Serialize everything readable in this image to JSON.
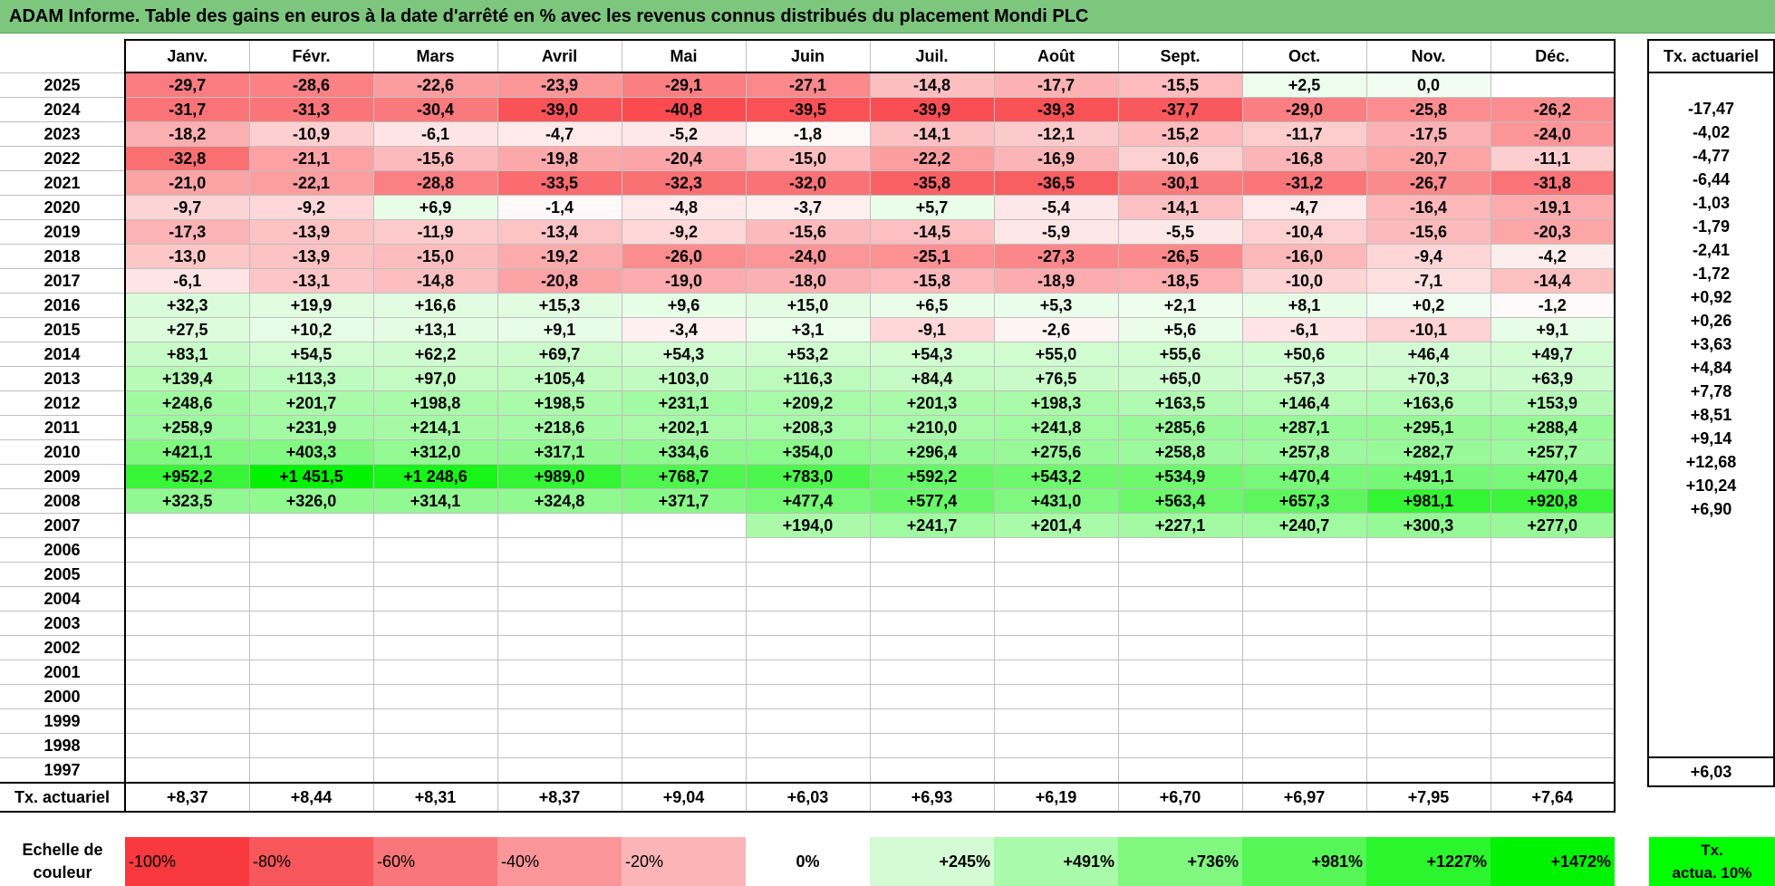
{
  "title": "ADAM Informe. Table des gains en euros à la date d'arrêté en % avec les revenus connus distribués du placement Mondi PLC",
  "months": [
    "Janv.",
    "Févr.",
    "Mars",
    "Avril",
    "Mai",
    "Juin",
    "Juil.",
    "Août",
    "Sept.",
    "Oct.",
    "Nov.",
    "Déc."
  ],
  "side_header": "Tx. actuariel",
  "rows": [
    {
      "year": "2025",
      "cells": [
        "-29,7",
        "-28,6",
        "-22,6",
        "-23,9",
        "-29,1",
        "-27,1",
        "-14,8",
        "-17,7",
        "-15,5",
        "+2,5",
        "0,0",
        ""
      ],
      "rate": ""
    },
    {
      "year": "2024",
      "cells": [
        "-31,7",
        "-31,3",
        "-30,4",
        "-39,0",
        "-40,8",
        "-39,5",
        "-39,9",
        "-39,3",
        "-37,7",
        "-29,0",
        "-25,8",
        "-26,2"
      ],
      "rate": "-17,47"
    },
    {
      "year": "2023",
      "cells": [
        "-18,2",
        "-10,9",
        "-6,1",
        "-4,7",
        "-5,2",
        "-1,8",
        "-14,1",
        "-12,1",
        "-15,2",
        "-11,7",
        "-17,5",
        "-24,0"
      ],
      "rate": "-4,02"
    },
    {
      "year": "2022",
      "cells": [
        "-32,8",
        "-21,1",
        "-15,6",
        "-19,8",
        "-20,4",
        "-15,0",
        "-22,2",
        "-16,9",
        "-10,6",
        "-16,8",
        "-20,7",
        "-11,1"
      ],
      "rate": "-4,77"
    },
    {
      "year": "2021",
      "cells": [
        "-21,0",
        "-22,1",
        "-28,8",
        "-33,5",
        "-32,3",
        "-32,0",
        "-35,8",
        "-36,5",
        "-30,1",
        "-31,2",
        "-26,7",
        "-31,8"
      ],
      "rate": "-6,44"
    },
    {
      "year": "2020",
      "cells": [
        "-9,7",
        "-9,2",
        "+6,9",
        "-1,4",
        "-4,8",
        "-3,7",
        "+5,7",
        "-5,4",
        "-14,1",
        "-4,7",
        "-16,4",
        "-19,1"
      ],
      "rate": "-1,03"
    },
    {
      "year": "2019",
      "cells": [
        "-17,3",
        "-13,9",
        "-11,9",
        "-13,4",
        "-9,2",
        "-15,6",
        "-14,5",
        "-5,9",
        "-5,5",
        "-10,4",
        "-15,6",
        "-20,3"
      ],
      "rate": "-1,79"
    },
    {
      "year": "2018",
      "cells": [
        "-13,0",
        "-13,9",
        "-15,0",
        "-19,2",
        "-26,0",
        "-24,0",
        "-25,1",
        "-27,3",
        "-26,5",
        "-16,0",
        "-9,4",
        "-4,2"
      ],
      "rate": "-2,41"
    },
    {
      "year": "2017",
      "cells": [
        "-6,1",
        "-13,1",
        "-14,8",
        "-20,8",
        "-19,0",
        "-18,0",
        "-15,8",
        "-18,9",
        "-18,5",
        "-10,0",
        "-7,1",
        "-14,4"
      ],
      "rate": "-1,72"
    },
    {
      "year": "2016",
      "cells": [
        "+32,3",
        "+19,9",
        "+16,6",
        "+15,3",
        "+9,6",
        "+15,0",
        "+6,5",
        "+5,3",
        "+2,1",
        "+8,1",
        "+0,2",
        "-1,2"
      ],
      "rate": "+0,92"
    },
    {
      "year": "2015",
      "cells": [
        "+27,5",
        "+10,2",
        "+13,1",
        "+9,1",
        "-3,4",
        "+3,1",
        "-9,1",
        "-2,6",
        "+5,6",
        "-6,1",
        "-10,1",
        "+9,1"
      ],
      "rate": "+0,26"
    },
    {
      "year": "2014",
      "cells": [
        "+83,1",
        "+54,5",
        "+62,2",
        "+69,7",
        "+54,3",
        "+53,2",
        "+54,3",
        "+55,0",
        "+55,6",
        "+50,6",
        "+46,4",
        "+49,7"
      ],
      "rate": "+3,63"
    },
    {
      "year": "2013",
      "cells": [
        "+139,4",
        "+113,3",
        "+97,0",
        "+105,4",
        "+103,0",
        "+116,3",
        "+84,4",
        "+76,5",
        "+65,0",
        "+57,3",
        "+70,3",
        "+63,9"
      ],
      "rate": "+4,84"
    },
    {
      "year": "2012",
      "cells": [
        "+248,6",
        "+201,7",
        "+198,8",
        "+198,5",
        "+231,1",
        "+209,2",
        "+201,3",
        "+198,3",
        "+163,5",
        "+146,4",
        "+163,6",
        "+153,9"
      ],
      "rate": "+7,78"
    },
    {
      "year": "2011",
      "cells": [
        "+258,9",
        "+231,9",
        "+214,1",
        "+218,6",
        "+202,1",
        "+208,3",
        "+210,0",
        "+241,8",
        "+285,6",
        "+287,1",
        "+295,1",
        "+288,4"
      ],
      "rate": "+8,51"
    },
    {
      "year": "2010",
      "cells": [
        "+421,1",
        "+403,3",
        "+312,0",
        "+317,1",
        "+334,6",
        "+354,0",
        "+296,4",
        "+275,6",
        "+258,8",
        "+257,8",
        "+282,7",
        "+257,7"
      ],
      "rate": "+9,14"
    },
    {
      "year": "2009",
      "cells": [
        "+952,2",
        "+1 451,5",
        "+1 248,6",
        "+989,0",
        "+768,7",
        "+783,0",
        "+592,2",
        "+543,2",
        "+534,9",
        "+470,4",
        "+491,1",
        "+470,4"
      ],
      "rate": "+12,68"
    },
    {
      "year": "2008",
      "cells": [
        "+323,5",
        "+326,0",
        "+314,1",
        "+324,8",
        "+371,7",
        "+477,4",
        "+577,4",
        "+431,0",
        "+563,4",
        "+657,3",
        "+981,1",
        "+920,8"
      ],
      "rate": "+10,24"
    },
    {
      "year": "2007",
      "cells": [
        "",
        "",
        "",
        "",
        "",
        "+194,0",
        "+241,7",
        "+201,4",
        "+227,1",
        "+240,7",
        "+300,3",
        "+277,0"
      ],
      "rate": "+6,90"
    },
    {
      "year": "2006",
      "cells": [
        "",
        "",
        "",
        "",
        "",
        "",
        "",
        "",
        "",
        "",
        "",
        ""
      ],
      "rate": ""
    },
    {
      "year": "2005",
      "cells": [
        "",
        "",
        "",
        "",
        "",
        "",
        "",
        "",
        "",
        "",
        "",
        ""
      ],
      "rate": ""
    },
    {
      "year": "2004",
      "cells": [
        "",
        "",
        "",
        "",
        "",
        "",
        "",
        "",
        "",
        "",
        "",
        ""
      ],
      "rate": ""
    },
    {
      "year": "2003",
      "cells": [
        "",
        "",
        "",
        "",
        "",
        "",
        "",
        "",
        "",
        "",
        "",
        ""
      ],
      "rate": ""
    },
    {
      "year": "2002",
      "cells": [
        "",
        "",
        "",
        "",
        "",
        "",
        "",
        "",
        "",
        "",
        "",
        ""
      ],
      "rate": ""
    },
    {
      "year": "2001",
      "cells": [
        "",
        "",
        "",
        "",
        "",
        "",
        "",
        "",
        "",
        "",
        "",
        ""
      ],
      "rate": ""
    },
    {
      "year": "2000",
      "cells": [
        "",
        "",
        "",
        "",
        "",
        "",
        "",
        "",
        "",
        "",
        "",
        ""
      ],
      "rate": ""
    },
    {
      "year": "1999",
      "cells": [
        "",
        "",
        "",
        "",
        "",
        "",
        "",
        "",
        "",
        "",
        "",
        ""
      ],
      "rate": ""
    },
    {
      "year": "1998",
      "cells": [
        "",
        "",
        "",
        "",
        "",
        "",
        "",
        "",
        "",
        "",
        "",
        ""
      ],
      "rate": ""
    },
    {
      "year": "1997",
      "cells": [
        "",
        "",
        "",
        "",
        "",
        "",
        "",
        "",
        "",
        "",
        "",
        ""
      ],
      "rate": ""
    }
  ],
  "footer": {
    "label": "Tx. actuariel",
    "values": [
      "+8,37",
      "+8,44",
      "+8,31",
      "+8,37",
      "+9,04",
      "+6,03",
      "+6,93",
      "+6,19",
      "+6,70",
      "+6,97",
      "+7,95",
      "+7,64"
    ],
    "side": "+6,03"
  },
  "legend": {
    "label_line1": "Echelle de",
    "label_line2": "couleur",
    "items": [
      "-100%",
      "-80%",
      "-60%",
      "-40%",
      "-20%",
      "0%",
      "+245%",
      "+491%",
      "+736%",
      "+981%",
      "+1227%",
      "+1472%"
    ],
    "colors": [
      "#f8393e",
      "#f8575b",
      "#f9777a",
      "#fa9699",
      "#fbb5b7",
      "#ffffff",
      "#d4fbd4",
      "#aafaab",
      "#80f880",
      "#56f657",
      "#2bf52c",
      "#00f300"
    ],
    "side_line1": "Tx.",
    "side_line2": "actua. 10%"
  }
}
